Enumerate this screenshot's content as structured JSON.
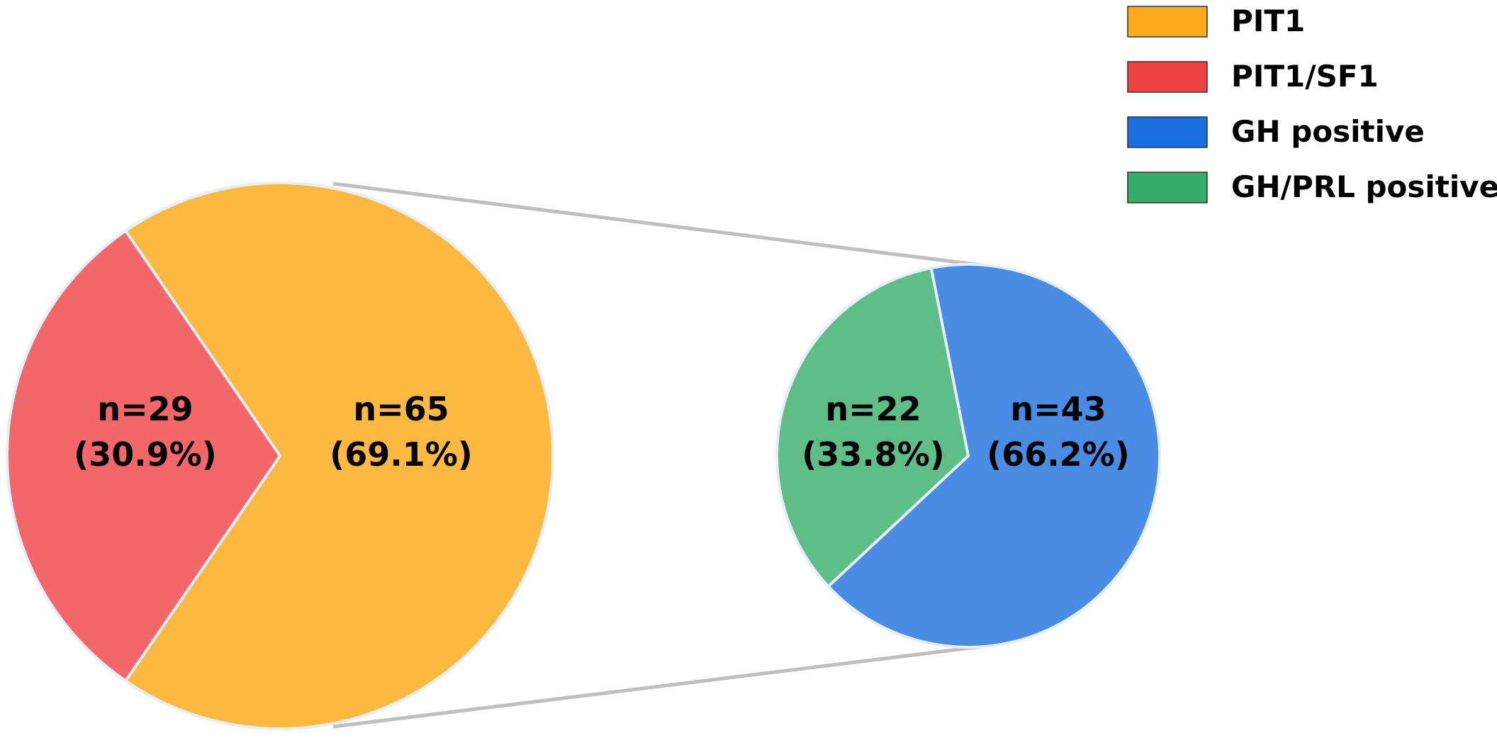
{
  "chart_data": [
    {
      "type": "pie",
      "name": "main-pie",
      "slices": [
        {
          "label": "PIT1",
          "value": 65,
          "percent": 69.1,
          "count_text": "n=65",
          "percent_text": "(69.1%)",
          "color": "#FCB941"
        },
        {
          "label": "PIT1/SF1",
          "value": 29,
          "percent": 30.9,
          "count_text": "n=29",
          "percent_text": "(30.9%)",
          "color": "#F3676A"
        }
      ]
    },
    {
      "type": "pie",
      "name": "breakdown-pie",
      "parent_slice": "PIT1",
      "slices": [
        {
          "label": "GH positive",
          "value": 43,
          "percent": 66.2,
          "count_text": "n=43",
          "percent_text": "(66.2%)",
          "color": "#4A8BE4"
        },
        {
          "label": "GH/PRL positive",
          "value": 22,
          "percent": 33.8,
          "count_text": "n=22",
          "percent_text": "(33.8%)",
          "color": "#5FBD87"
        }
      ]
    }
  ],
  "legend": {
    "placement": "top-right",
    "items": [
      {
        "label": "PIT1",
        "color": "#FCAA1A"
      },
      {
        "label": "PIT1/SF1",
        "color": "#F04444"
      },
      {
        "label": "GH positive",
        "color": "#1A6FDF"
      },
      {
        "label": "GH/PRL positive",
        "color": "#35AE6A"
      }
    ]
  },
  "colors": {
    "connector": "#BFBFBF",
    "outline": "#E6EEF6"
  }
}
